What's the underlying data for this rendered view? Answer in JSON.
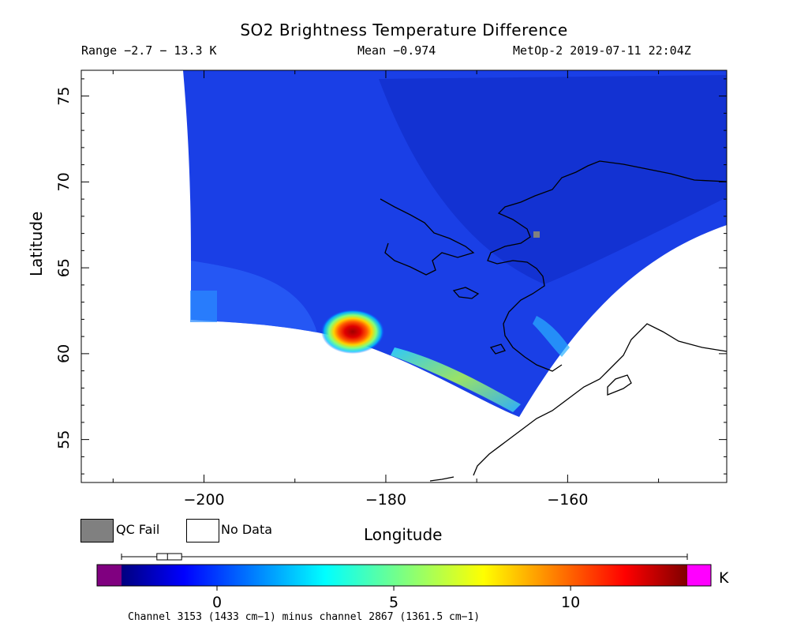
{
  "header": {
    "title": "SO2 Brightness Temperature Difference",
    "range": "Range −2.7 − 13.3 K",
    "mean": "Mean −0.974",
    "satellite_time": "MetOp-2 2019-07-11 22:04Z"
  },
  "legend": {
    "qc_fail": "QC Fail",
    "no_data": "No Data",
    "qc_color": "#808080",
    "nodata_color": "#ffffff"
  },
  "colorbar": {
    "unit": "K",
    "ticks": [
      "0",
      "5",
      "10"
    ],
    "min": -2.7,
    "max": 13.3,
    "under_color": "#800080",
    "over_color": "#ff00ff",
    "boxplot": {
      "whisker_low": -2.7,
      "q1": -1.7,
      "median": -1.4,
      "q3": -1.0,
      "whisker_high": 13.3
    },
    "footnote": "Channel 3153 (1433 cm−1) minus channel 2867 (1361.5 cm−1)"
  },
  "chart_data": {
    "type": "heatmap",
    "title": "SO2 Brightness Temperature Difference",
    "xlabel": "Longitude",
    "ylabel": "Latitude",
    "xlim": [
      -213.5,
      -142.5
    ],
    "ylim": [
      52.5,
      76.5
    ],
    "x_ticks": [
      -200,
      -180,
      -160
    ],
    "y_ticks": [
      55,
      60,
      65,
      70,
      75
    ],
    "x_tick_labels": [
      "−200",
      "−180",
      "−160"
    ],
    "y_tick_labels": [
      "55",
      "60",
      "65",
      "70",
      "75"
    ],
    "background_value_K": -1.2,
    "hotspot": {
      "lon": -182.5,
      "lat": 61.0,
      "peak_K": 13.3
    },
    "secondary_plume": {
      "lon_range": [
        -175,
        -165
      ],
      "lat_range": [
        57.5,
        59.5
      ],
      "peak_K": 6
    },
    "qc_fail_pixel": {
      "lon": -162.5,
      "lat": 66.8
    }
  }
}
